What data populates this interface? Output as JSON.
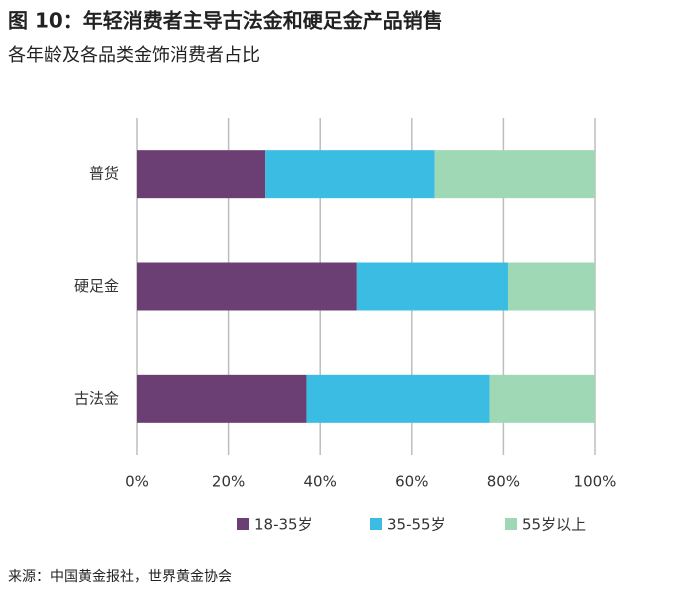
{
  "chart_data": {
    "type": "stacked-barh",
    "title": "图 10：年轻消费者主导古法金和硬足金产品销售",
    "subtitle": "各年龄及各品类金饰消费者占比",
    "source": "来源：中国黄金报社，世界黄金协会",
    "categories": [
      "普货",
      "硬足金",
      "古法金"
    ],
    "series": [
      {
        "name": "18-35岁",
        "color": "#6b3f73",
        "values": [
          28,
          48,
          37
        ]
      },
      {
        "name": "35-55岁",
        "color": "#3bbde3",
        "values": [
          37,
          33,
          40
        ]
      },
      {
        "name": "55岁以上",
        "color": "#9ed8b5",
        "values": [
          35,
          19,
          23
        ]
      }
    ],
    "xlim": [
      0,
      100
    ],
    "xticks": [
      {
        "value": 0,
        "label": "0%"
      },
      {
        "value": 20,
        "label": "20%"
      },
      {
        "value": 40,
        "label": "40%"
      },
      {
        "value": 60,
        "label": "60%"
      },
      {
        "value": 80,
        "label": "80%"
      },
      {
        "value": 100,
        "label": "100%"
      }
    ],
    "grid": true,
    "legend": "bottom"
  }
}
